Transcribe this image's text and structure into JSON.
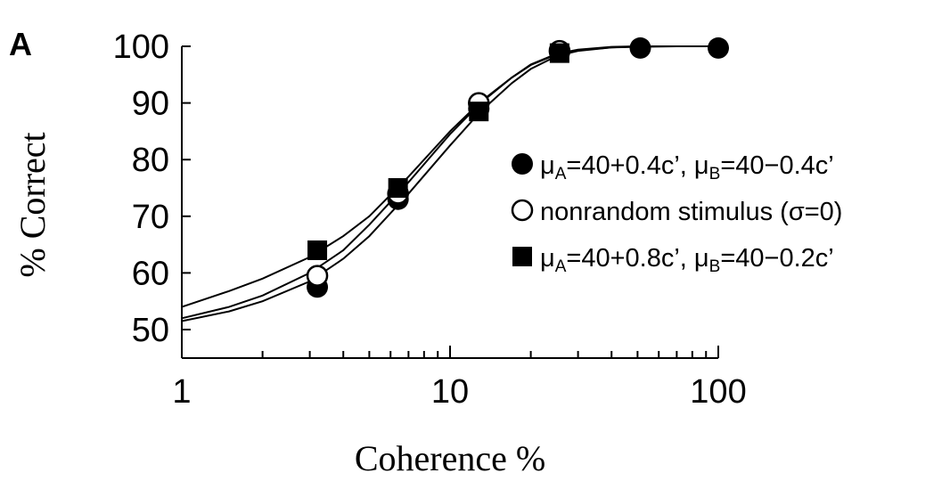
{
  "chart_data": {
    "type": "scatter",
    "panel_label": "A",
    "xlabel": "Coherence %",
    "ylabel": "% Correct",
    "xscale": "log",
    "xlim": [
      1,
      100
    ],
    "ylim": [
      45,
      100
    ],
    "x_ticks": [
      1,
      10,
      100
    ],
    "y_ticks": [
      50,
      60,
      70,
      80,
      90,
      100
    ],
    "grid": false,
    "legend_position": "right",
    "series": [
      {
        "name": "μA=40+0.4c', μB=40−0.4c'",
        "marker": "filled-circle",
        "x": [
          3.2,
          6.4,
          12.8,
          25.6,
          51.2,
          100
        ],
        "y": [
          57.5,
          73,
          89,
          99,
          99.7,
          99.7
        ],
        "curve": {
          "x": [
            1,
            1.5,
            2,
            3,
            4,
            5,
            7,
            10,
            13,
            17,
            20,
            25,
            30,
            40,
            50,
            70,
            100
          ],
          "y": [
            51.5,
            53.2,
            55,
            58.5,
            62.5,
            66.5,
            74,
            82.5,
            88.5,
            93.5,
            96,
            98.3,
            99.2,
            99.8,
            99.9,
            100,
            100
          ]
        }
      },
      {
        "name": "nonrandom stimulus (σ=0)",
        "marker": "open-circle",
        "x": [
          3.2,
          6.4,
          12.8,
          25.6
        ],
        "y": [
          59.5,
          74,
          90,
          99.2
        ],
        "curve": {
          "x": [
            1,
            1.5,
            2,
            3,
            4,
            5,
            7,
            10,
            13,
            17,
            20,
            25,
            30,
            40,
            50,
            70,
            100
          ],
          "y": [
            52,
            54,
            56,
            60,
            64,
            68.5,
            76,
            84.5,
            90,
            94.5,
            96.8,
            98.7,
            99.4,
            99.9,
            100,
            100,
            100
          ]
        }
      },
      {
        "name": "μA=40+0.8c', μB=40−0.2c'",
        "marker": "filled-square",
        "x": [
          3.2,
          6.4,
          12.8,
          25.6
        ],
        "y": [
          64,
          75,
          88.5,
          98.8
        ],
        "curve": {
          "x": [
            1,
            1.5,
            2,
            3,
            4,
            5,
            7,
            10,
            13,
            17,
            20,
            25,
            30,
            40,
            50,
            70,
            100
          ],
          "y": [
            54,
            56.8,
            59,
            62.8,
            66.5,
            70,
            77,
            85,
            90.2,
            94.5,
            96.7,
            98.6,
            99.3,
            99.8,
            100,
            100,
            100
          ]
        }
      }
    ]
  },
  "legend": {
    "entries": [
      {
        "marker": "filled-circle",
        "parts": [
          [
            "μ",
            ""
          ],
          [
            "A",
            "sub"
          ],
          [
            "=40+0.4c’, μ",
            ""
          ],
          [
            "B",
            "sub"
          ],
          [
            "=40−0.4c’",
            ""
          ]
        ]
      },
      {
        "marker": "open-circle",
        "parts": [
          [
            "nonrandom stimulus (σ=0)",
            ""
          ]
        ]
      },
      {
        "marker": "filled-square",
        "parts": [
          [
            "μ",
            ""
          ],
          [
            "A",
            "sub"
          ],
          [
            "=40+0.8c’, μ",
            ""
          ],
          [
            "B",
            "sub"
          ],
          [
            "=40−0.2c’",
            ""
          ]
        ]
      }
    ]
  }
}
